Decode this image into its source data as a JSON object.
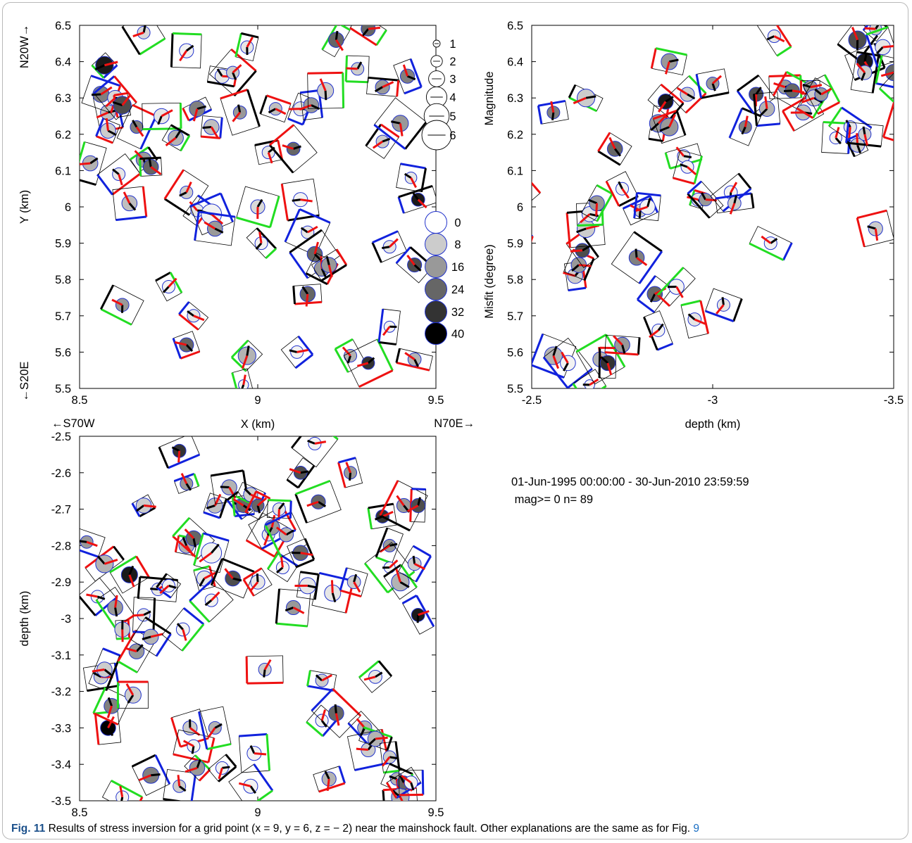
{
  "caption": {
    "label": "Fig. 11",
    "text": "Results of stress inversion for a grid point (x = 9, y = 6, z = − 2) near the mainshock fault. Other explanations are the same as for Fig. ",
    "ref": "9"
  },
  "info": {
    "date_range": "01-Jun-1995 00:00:00 - 30-Jun-2010 23:59:59",
    "mag_line": " mag>= 0 n= 89"
  },
  "colors": {
    "green": "#22dd22",
    "red": "#ee1111",
    "blue": "#1122dd",
    "black": "#000000",
    "circle_edge": "#2233cc"
  },
  "chart_data": [
    {
      "type": "scatter",
      "title": "",
      "xlabel": "X (km)",
      "ylabel": "Y (km)",
      "xlim": [
        8.5,
        9.5
      ],
      "ylim": [
        5.5,
        6.5
      ],
      "xticks": [
        "8.5",
        "9",
        "9.5"
      ],
      "yticks": [
        "5.5",
        "5.6",
        "5.7",
        "5.8",
        "5.9",
        "6",
        "6.1",
        "6.2",
        "6.3",
        "6.4",
        "6.5"
      ],
      "corner_labels": {
        "top_left": "N20W→",
        "bottom_left": "←S20E",
        "x_left": "←S70W",
        "x_right": "N70E→"
      },
      "legend_magnitude": {
        "labels": [
          "1",
          "2",
          "3",
          "4",
          "5",
          "6"
        ]
      },
      "legend_misfit": {
        "labels": [
          "0",
          "8",
          "16",
          "24",
          "32",
          "40"
        ]
      },
      "events": [
        [
          8.53,
          6.12,
          3,
          12
        ],
        [
          8.57,
          6.39,
          3.5,
          36
        ],
        [
          8.58,
          6.26,
          3,
          10
        ],
        [
          8.56,
          6.31,
          3.2,
          20
        ],
        [
          8.6,
          6.3,
          3,
          6
        ],
        [
          8.62,
          6.28,
          3.5,
          28
        ],
        [
          8.58,
          6.21,
          3,
          8
        ],
        [
          8.61,
          6.09,
          2.5,
          4
        ],
        [
          8.64,
          6.01,
          3,
          10
        ],
        [
          8.66,
          6.22,
          2.5,
          20
        ],
        [
          8.68,
          6.13,
          3,
          16
        ],
        [
          8.7,
          6.11,
          3,
          24
        ],
        [
          8.62,
          5.73,
          2.6,
          16
        ],
        [
          8.68,
          6.48,
          2.5,
          6
        ],
        [
          8.73,
          6.25,
          3,
          4
        ],
        [
          8.77,
          6.19,
          3,
          12
        ],
        [
          8.75,
          5.78,
          2.5,
          2
        ],
        [
          8.8,
          6.43,
          2.8,
          2
        ],
        [
          8.8,
          6.04,
          2.5,
          8
        ],
        [
          8.83,
          6.27,
          3.1,
          20
        ],
        [
          8.87,
          6.22,
          3,
          10
        ],
        [
          8.83,
          5.99,
          2.5,
          4
        ],
        [
          8.87,
          5.98,
          4,
          2
        ],
        [
          8.88,
          5.94,
          3,
          16
        ],
        [
          8.82,
          5.7,
          2.5,
          4
        ],
        [
          8.8,
          5.62,
          2.8,
          24
        ],
        [
          8.9,
          6.36,
          2.8,
          4
        ],
        [
          8.93,
          6.37,
          2.5,
          8
        ],
        [
          8.95,
          6.26,
          2.6,
          16
        ],
        [
          8.97,
          6.44,
          2.5,
          4
        ],
        [
          8.97,
          5.59,
          3.5,
          12
        ],
        [
          8.96,
          5.51,
          2,
          2
        ],
        [
          9.0,
          6.0,
          2.8,
          6
        ],
        [
          9.01,
          5.9,
          2.5,
          2
        ],
        [
          9.03,
          6.15,
          2.5,
          4
        ],
        [
          9.05,
          6.27,
          2.5,
          10
        ],
        [
          9.1,
          6.16,
          2.6,
          24
        ],
        [
          9.12,
          6.02,
          2.8,
          2
        ],
        [
          9.12,
          6.27,
          2.8,
          4
        ],
        [
          9.11,
          5.6,
          2.5,
          2
        ],
        [
          9.15,
          6.28,
          3,
          16
        ],
        [
          9.14,
          5.93,
          2.5,
          4
        ],
        [
          9.16,
          5.87,
          3,
          24
        ],
        [
          9.14,
          5.76,
          3,
          24
        ],
        [
          9.18,
          5.83,
          3,
          16
        ],
        [
          9.2,
          5.84,
          3,
          16
        ],
        [
          9.19,
          6.32,
          3.2,
          8
        ],
        [
          9.22,
          6.46,
          3,
          24
        ],
        [
          9.26,
          5.59,
          2.5,
          12
        ],
        [
          9.28,
          6.38,
          2.5,
          8
        ],
        [
          9.31,
          6.49,
          2.8,
          24
        ],
        [
          9.31,
          5.57,
          2.5,
          32
        ],
        [
          9.35,
          6.33,
          2.8,
          16
        ],
        [
          9.35,
          6.18,
          2.5,
          8
        ],
        [
          9.37,
          5.89,
          2.5,
          4
        ],
        [
          9.37,
          5.67,
          2.2,
          2
        ],
        [
          9.4,
          6.23,
          3.2,
          16
        ],
        [
          9.42,
          6.36,
          2.8,
          20
        ],
        [
          9.43,
          6.08,
          2.3,
          4
        ],
        [
          9.44,
          5.84,
          2.8,
          28
        ],
        [
          9.45,
          6.02,
          2.6,
          36
        ],
        [
          9.44,
          5.58,
          2.6,
          12
        ]
      ]
    },
    {
      "type": "scatter",
      "title": "",
      "xlabel": "depth (km)",
      "ylabel_upper": "Magnitude",
      "ylabel_lower": "Misfit (degree)",
      "xlim": [
        -2.5,
        -3.5
      ],
      "ylim": [
        5.5,
        6.5
      ],
      "xticks": [
        "-2.5",
        "-3",
        "-3.5"
      ],
      "yticks": [
        "5.5",
        "5.6",
        "5.7",
        "5.8",
        "5.9",
        "6",
        "6.1",
        "6.2",
        "6.3",
        "6.4",
        "6.5"
      ],
      "events": [
        [
          -2.46,
          5.91,
          2.5,
          2
        ],
        [
          -2.48,
          6.04,
          2.5,
          28
        ],
        [
          -2.56,
          6.26,
          2.5,
          20
        ],
        [
          -2.56,
          5.59,
          3.5,
          12
        ],
        [
          -2.6,
          5.57,
          3,
          2
        ],
        [
          -2.62,
          5.81,
          3,
          8
        ],
        [
          -2.63,
          5.84,
          3,
          16
        ],
        [
          -2.64,
          5.88,
          2.8,
          28
        ],
        [
          -2.65,
          5.94,
          3.5,
          8
        ],
        [
          -2.65,
          6.3,
          3.5,
          8
        ],
        [
          -2.66,
          5.51,
          2,
          2
        ],
        [
          -2.66,
          5.98,
          3,
          4
        ],
        [
          -2.68,
          6.01,
          3,
          16
        ],
        [
          -2.69,
          5.58,
          3,
          12
        ],
        [
          -2.71,
          5.57,
          3,
          32
        ],
        [
          -2.73,
          6.16,
          3,
          24
        ],
        [
          -2.75,
          6.05,
          2.5,
          2
        ],
        [
          -2.75,
          5.62,
          3,
          16
        ],
        [
          -2.79,
          5.86,
          3,
          20
        ],
        [
          -2.8,
          5.99,
          2.5,
          8
        ],
        [
          -2.82,
          6.0,
          3,
          2
        ],
        [
          -2.84,
          5.76,
          3,
          24
        ],
        [
          -2.85,
          5.66,
          2.5,
          2
        ],
        [
          -2.85,
          6.23,
          3.5,
          16
        ],
        [
          -2.87,
          6.29,
          3,
          36
        ],
        [
          -2.88,
          6.22,
          3.5,
          16
        ],
        [
          -2.88,
          6.4,
          3.2,
          16
        ],
        [
          -2.9,
          5.78,
          3,
          2
        ],
        [
          -2.92,
          6.14,
          2.5,
          4
        ],
        [
          -2.93,
          6.11,
          2.5,
          2
        ],
        [
          -2.93,
          6.31,
          2.8,
          8
        ],
        [
          -2.95,
          5.69,
          2.6,
          4
        ],
        [
          -2.96,
          6.02,
          2.6,
          4
        ],
        [
          -2.98,
          6.02,
          2.5,
          16
        ],
        [
          -3.0,
          6.34,
          2.5,
          16
        ],
        [
          -3.03,
          5.73,
          2.5,
          4
        ],
        [
          -3.05,
          6.04,
          2.6,
          2
        ],
        [
          -3.06,
          6.01,
          2.6,
          8
        ],
        [
          -3.09,
          6.22,
          2.5,
          20
        ],
        [
          -3.12,
          6.31,
          2.8,
          28
        ],
        [
          -3.15,
          6.27,
          3,
          12
        ],
        [
          -3.16,
          5.9,
          2.5,
          2
        ],
        [
          -3.17,
          6.47,
          2.5,
          4
        ],
        [
          -3.2,
          6.33,
          2.8,
          16
        ],
        [
          -3.22,
          6.32,
          2.8,
          24
        ],
        [
          -3.25,
          6.26,
          3,
          10
        ],
        [
          -3.27,
          6.33,
          2.6,
          16
        ],
        [
          -3.28,
          6.3,
          3.2,
          8
        ],
        [
          -3.3,
          6.31,
          2.6,
          16
        ],
        [
          -3.34,
          6.19,
          2.4,
          2
        ],
        [
          -3.38,
          6.22,
          2.5,
          4
        ],
        [
          -3.4,
          6.17,
          2.8,
          8
        ],
        [
          -3.42,
          6.2,
          2.5,
          8
        ],
        [
          -3.4,
          6.46,
          3.5,
          28
        ],
        [
          -3.42,
          6.4,
          3.2,
          36
        ],
        [
          -3.42,
          6.37,
          2.8,
          8
        ],
        [
          -3.45,
          6.49,
          2.4,
          8
        ],
        [
          -3.47,
          6.44,
          3,
          4
        ],
        [
          -3.5,
          6.37,
          3.2,
          24
        ],
        [
          -3.52,
          6.32,
          2.6,
          4
        ],
        [
          -3.54,
          6.27,
          3,
          24
        ],
        [
          -3.55,
          6.12,
          2.8,
          24
        ],
        [
          -3.58,
          6.08,
          2.5,
          2
        ],
        [
          -3.45,
          5.94,
          2.8,
          8
        ],
        [
          -3.52,
          6.23,
          2.5,
          2
        ]
      ]
    },
    {
      "type": "scatter",
      "title": "",
      "xlabel": "",
      "ylabel": "depth (km)",
      "xlim": [
        8.5,
        9.5
      ],
      "ylim": [
        -3.5,
        -2.5
      ],
      "xticks": [
        "8.5",
        "9",
        "9.5"
      ],
      "yticks": [
        "-3.5",
        "-3.4",
        "-3.3",
        "-3.2",
        "-3.1",
        "-3",
        "-2.9",
        "-2.8",
        "-2.7",
        "-2.6",
        "-2.5"
      ],
      "events": [
        [
          8.52,
          -2.79,
          2.5,
          16
        ],
        [
          8.55,
          -2.94,
          2.5,
          2
        ],
        [
          8.56,
          -3.16,
          2.8,
          8
        ],
        [
          8.57,
          -3.14,
          3,
          8
        ],
        [
          8.57,
          -2.85,
          3.5,
          12
        ],
        [
          8.58,
          -3.3,
          3,
          40
        ],
        [
          8.59,
          -3.24,
          3,
          20
        ],
        [
          8.6,
          -2.97,
          3,
          16
        ],
        [
          8.62,
          -3.03,
          3,
          8
        ],
        [
          8.62,
          -3.49,
          2.5,
          2
        ],
        [
          8.64,
          -2.88,
          3.2,
          36
        ],
        [
          8.65,
          -3.21,
          3.2,
          8
        ],
        [
          8.66,
          -3.09,
          3,
          16
        ],
        [
          8.68,
          -2.69,
          3,
          8
        ],
        [
          8.68,
          -2.99,
          2.5,
          4
        ],
        [
          8.7,
          -3.05,
          3,
          12
        ],
        [
          8.7,
          -3.43,
          3.2,
          20
        ],
        [
          8.72,
          -2.92,
          2.5,
          4
        ],
        [
          8.75,
          -2.91,
          2.5,
          2
        ],
        [
          8.78,
          -2.54,
          2.6,
          32
        ],
        [
          8.78,
          -3.46,
          2.5,
          8
        ],
        [
          8.79,
          -3.03,
          2.6,
          2
        ],
        [
          8.8,
          -2.63,
          2.5,
          16
        ],
        [
          8.8,
          -2.8,
          3,
          12
        ],
        [
          8.82,
          -2.78,
          3,
          24
        ],
        [
          8.81,
          -3.3,
          2.8,
          8
        ],
        [
          8.82,
          -3.35,
          2.5,
          2
        ],
        [
          8.83,
          -3.41,
          3,
          16
        ],
        [
          8.85,
          -2.89,
          3,
          4
        ],
        [
          8.87,
          -2.82,
          4,
          2
        ],
        [
          8.87,
          -2.95,
          2.5,
          2
        ],
        [
          8.88,
          -3.3,
          2.5,
          12
        ],
        [
          8.88,
          -2.69,
          3,
          10
        ],
        [
          8.9,
          -3.41,
          2.5,
          2
        ],
        [
          8.92,
          -2.64,
          3,
          12
        ],
        [
          8.93,
          -2.89,
          3,
          28
        ],
        [
          8.95,
          -2.69,
          2.5,
          16
        ],
        [
          8.96,
          -2.69,
          2.8,
          24
        ],
        [
          8.98,
          -2.66,
          2.8,
          8
        ],
        [
          8.98,
          -3.46,
          2.8,
          2
        ],
        [
          8.99,
          -3.37,
          2.8,
          2
        ],
        [
          9.0,
          -2.69,
          2.5,
          24
        ],
        [
          9.0,
          -2.9,
          2.8,
          4
        ],
        [
          9.02,
          -3.14,
          2.5,
          8
        ],
        [
          9.03,
          -2.77,
          2.5,
          4
        ],
        [
          9.04,
          -2.75,
          3,
          16
        ],
        [
          9.06,
          -2.7,
          2.5,
          4
        ],
        [
          9.07,
          -2.86,
          2.5,
          2
        ],
        [
          9.08,
          -2.77,
          2.8,
          12
        ],
        [
          9.1,
          -2.97,
          2.8,
          16
        ],
        [
          9.12,
          -2.6,
          2.6,
          28
        ],
        [
          9.12,
          -2.82,
          3,
          24
        ],
        [
          9.14,
          -2.91,
          3.2,
          4
        ],
        [
          9.16,
          -2.52,
          2.5,
          2
        ],
        [
          9.17,
          -2.68,
          2.8,
          24
        ],
        [
          9.18,
          -3.17,
          2.5,
          8
        ],
        [
          9.18,
          -3.28,
          2.5,
          2
        ],
        [
          9.2,
          -3.44,
          2.8,
          12
        ],
        [
          9.21,
          -2.93,
          3.2,
          4
        ],
        [
          9.22,
          -3.26,
          3,
          24
        ],
        [
          9.26,
          -2.6,
          2.5,
          16
        ],
        [
          9.27,
          -2.9,
          2.6,
          8
        ],
        [
          9.3,
          -3.3,
          2.8,
          12
        ],
        [
          9.31,
          -3.36,
          2.8,
          8
        ],
        [
          9.33,
          -3.33,
          3,
          12
        ],
        [
          9.33,
          -3.16,
          2.6,
          4
        ],
        [
          9.35,
          -2.72,
          2.6,
          32
        ],
        [
          9.37,
          -2.8,
          2.5,
          16
        ],
        [
          9.37,
          -2.86,
          2.2,
          2
        ],
        [
          9.37,
          -3.38,
          2.5,
          8
        ],
        [
          9.39,
          -3.44,
          2.5,
          12
        ],
        [
          9.4,
          -2.9,
          3.5,
          12
        ],
        [
          9.4,
          -3.49,
          3.5,
          12
        ],
        [
          9.41,
          -2.69,
          2.8,
          16
        ],
        [
          9.41,
          -3.45,
          2.6,
          24
        ],
        [
          9.43,
          -3.45,
          2.6,
          2
        ],
        [
          9.44,
          -2.85,
          2.6,
          8
        ],
        [
          9.45,
          -2.99,
          2.6,
          36
        ],
        [
          9.45,
          -2.69,
          2.8,
          28
        ]
      ]
    }
  ]
}
